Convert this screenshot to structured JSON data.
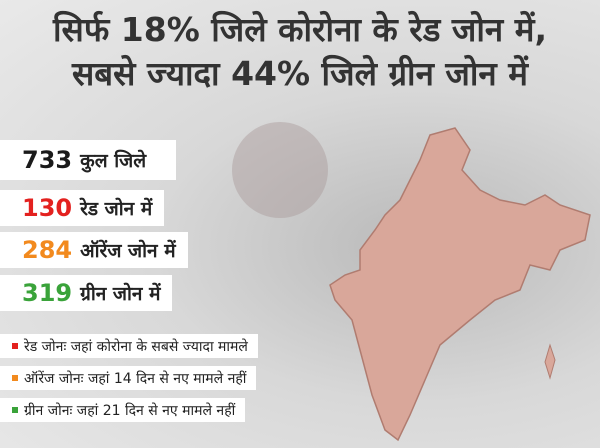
{
  "header": {
    "title_line1": "सिर्फ 18% जिले कोरोना के रेड जोन में,",
    "title_line2": "सबसे ज्यादा 44% जिले ग्रीन जोन में"
  },
  "stats": [
    {
      "number": 733,
      "label": "कुल जिले",
      "color": "#1a1a1a"
    },
    {
      "number": 130,
      "label": "रेड जोन में",
      "color": "#e3211f"
    },
    {
      "number": 284,
      "label": "ऑरेंज जोन में",
      "color": "#f28a1e"
    },
    {
      "number": 319,
      "label": "ग्रीन जोन में",
      "color": "#3aa33a"
    }
  ],
  "notes": [
    {
      "text": "रेड जोनः जहां कोरोना के सबसे ज्यादा मामले",
      "color": "#e3211f"
    },
    {
      "text": "ऑरेंज जोनः जहां 14 दिन से नए मामले नहीं",
      "color": "#f28a1e"
    },
    {
      "text": "ग्रीन जोनः जहां 21 दिन से नए मामले नहीं",
      "color": "#3aa33a"
    }
  ]
}
